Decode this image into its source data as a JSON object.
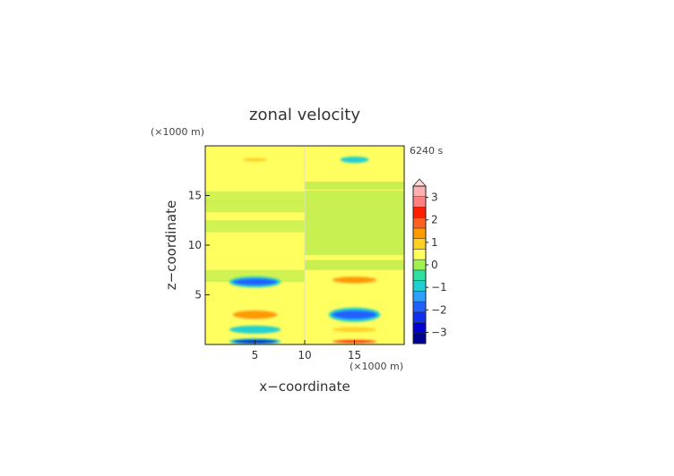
{
  "chart_data": {
    "type": "heatmap",
    "title": "zonal velocity",
    "time_label": "6240 s",
    "xlabel": "x−coordinate",
    "ylabel": "z−coordinate",
    "x_unit_label": "(×1000 m)",
    "y_unit_label": "(×1000 m)",
    "xlim": [
      0,
      20
    ],
    "ylim": [
      0,
      20
    ],
    "x_ticks": [
      5,
      10,
      15
    ],
    "y_ticks": [
      5,
      10,
      15
    ],
    "colorbar": {
      "extend": "max",
      "levels": [
        -3.5,
        -3,
        -2.5,
        -2,
        -1.5,
        -1,
        -0.5,
        0,
        0.5,
        1,
        1.5,
        2,
        2.5,
        3,
        3.5
      ],
      "colors": [
        "#000090",
        "#0000d0",
        "#1030f0",
        "#2060ff",
        "#30a0ff",
        "#20d0d0",
        "#30e0a0",
        "#a0f050",
        "#ffff60",
        "#ffd020",
        "#ff9a00",
        "#ff6020",
        "#ff2000",
        "#ff8080",
        "#ffb0b0"
      ],
      "tick_labels": [
        "3",
        "2",
        "1",
        "0",
        "−1",
        "−2",
        "−3"
      ],
      "tick_values": [
        3,
        2,
        1,
        0,
        -1,
        -2,
        -3
      ]
    },
    "features": [
      {
        "x": 5,
        "z": 0.3,
        "w": 4.5,
        "h": 0.4,
        "value": -3.0
      },
      {
        "x": 15,
        "z": 0.3,
        "w": 4.5,
        "h": 0.4,
        "value": 2.5
      },
      {
        "x": 5,
        "z": 1.5,
        "w": 4.5,
        "h": 0.5,
        "value": -1.0
      },
      {
        "x": 15,
        "z": 1.5,
        "w": 4.5,
        "h": 0.5,
        "value": 1.0
      },
      {
        "x": 5,
        "z": 3.0,
        "w": 4.5,
        "h": 0.9,
        "value": 1.5
      },
      {
        "x": 15,
        "z": 3.0,
        "w": 4.5,
        "h": 0.9,
        "value": -2.0
      },
      {
        "x": 5,
        "z": 6.3,
        "w": 4.5,
        "h": 0.7,
        "value": -2.0
      },
      {
        "x": 15,
        "z": 6.5,
        "w": 4.5,
        "h": 0.7,
        "value": 1.5
      },
      {
        "x": 5,
        "z": 18.6,
        "w": 2.5,
        "h": 0.4,
        "value": 1.0
      },
      {
        "x": 15,
        "z": 18.6,
        "w": 2.5,
        "h": 0.4,
        "value": -1.0
      }
    ]
  }
}
